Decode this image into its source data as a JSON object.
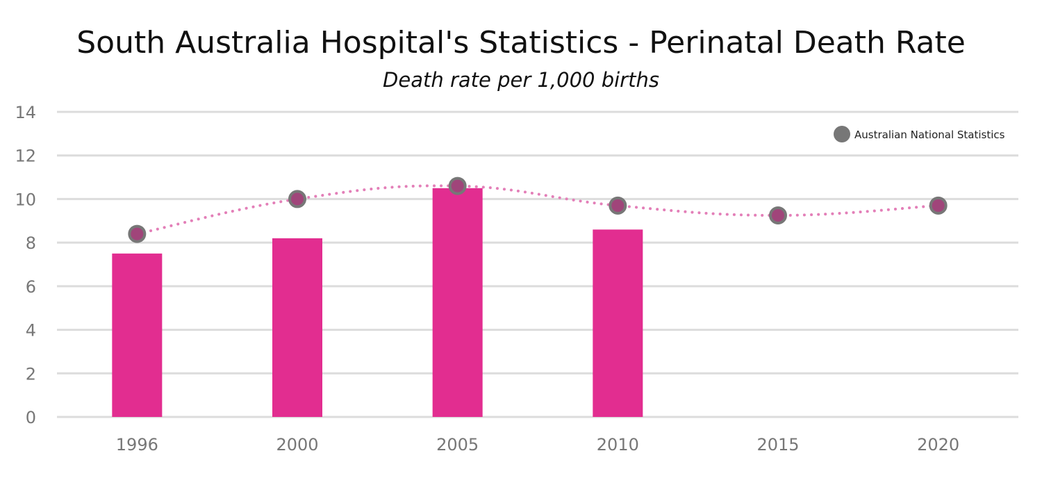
{
  "chart_data": {
    "type": "bar",
    "title": "South Australia Hospital's Statistics - Perinatal Death Rate",
    "subtitle": "Death rate per 1,000 births",
    "categories": [
      "1996",
      "2000",
      "2005",
      "2010",
      "2015",
      "2020"
    ],
    "series": [
      {
        "type": "bar",
        "values": [
          7.5,
          8.2,
          10.5,
          8.6,
          null,
          null
        ],
        "color": "#e22d90"
      },
      {
        "name": "Australian National Statistics",
        "type": "line-dotted-markers",
        "values": [
          8.4,
          10.0,
          10.6,
          9.7,
          9.25,
          9.7
        ],
        "line_color": "#e37fb8",
        "marker_color": "#a0457a",
        "marker_border": "#777777"
      }
    ],
    "ylim": [
      0,
      14
    ],
    "yticks": [
      0,
      2,
      4,
      6,
      8,
      10,
      12,
      14
    ],
    "grid": true,
    "legend": "top-right",
    "xlabel": "",
    "ylabel": ""
  }
}
